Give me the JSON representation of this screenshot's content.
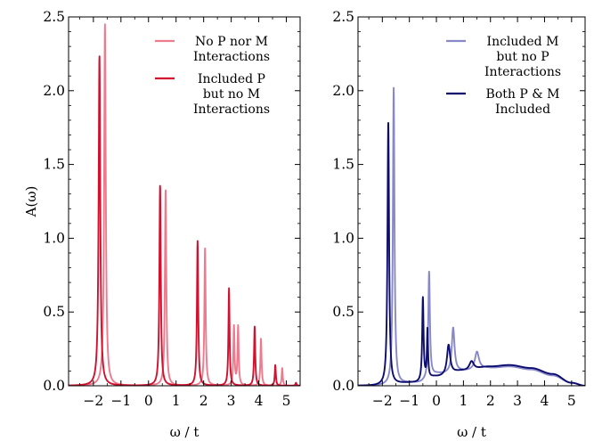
{
  "chart_data": [
    {
      "type": "line",
      "xlabel": "ω / t",
      "ylabel": "A(ω)",
      "xlim": [
        -2.9,
        5.5
      ],
      "ylim": [
        0,
        2.5
      ],
      "xticks": [
        -2,
        -1,
        0,
        1,
        2,
        3,
        4,
        5
      ],
      "xtick_labels": [
        "−2",
        "−1",
        "0",
        "1",
        "2",
        "3",
        "4",
        "5"
      ],
      "yticks": [
        0.0,
        0.5,
        1.0,
        1.5,
        2.0,
        2.5
      ],
      "ytick_labels": [
        "0.0",
        "0.5",
        "1.0",
        "1.5",
        "2.0",
        "2.5"
      ],
      "legend_position": "top-right",
      "series": [
        {
          "name": "No P nor M Interactions",
          "legend_lines": [
            "No P nor M",
            "Interactions"
          ],
          "color": "#ee7a8e",
          "peaks": [
            {
              "x": -1.58,
              "height": 2.45,
              "width": 0.07
            },
            {
              "x": 0.62,
              "height": 1.33,
              "width": 0.06
            },
            {
              "x": 2.05,
              "height": 0.93,
              "width": 0.055
            },
            {
              "x": 3.1,
              "height": 0.4,
              "width": 0.05
            },
            {
              "x": 3.25,
              "height": 0.4,
              "width": 0.05
            },
            {
              "x": 4.08,
              "height": 0.32,
              "width": 0.05
            },
            {
              "x": 4.85,
              "height": 0.12,
              "width": 0.045
            }
          ]
        },
        {
          "name": "Included P but no M Interactions",
          "legend_lines": [
            "Included P",
            "but no M",
            "Interactions"
          ],
          "color": "#d0122f",
          "peaks": [
            {
              "x": -1.78,
              "height": 2.24,
              "width": 0.07
            },
            {
              "x": 0.42,
              "height": 1.36,
              "width": 0.06
            },
            {
              "x": 1.78,
              "height": 0.98,
              "width": 0.055
            },
            {
              "x": 2.92,
              "height": 0.66,
              "width": 0.05
            },
            {
              "x": 3.85,
              "height": 0.4,
              "width": 0.05
            },
            {
              "x": 4.6,
              "height": 0.14,
              "width": 0.045
            },
            {
              "x": 5.35,
              "height": 0.02,
              "width": 0.05
            }
          ]
        }
      ]
    },
    {
      "type": "line",
      "xlabel": "ω / t",
      "ylabel": "",
      "xlim": [
        -2.9,
        5.5
      ],
      "ylim": [
        0,
        2.5
      ],
      "xticks": [
        -2,
        -1,
        0,
        1,
        2,
        3,
        4,
        5
      ],
      "xtick_labels": [
        "−2",
        "−1",
        "0",
        "1",
        "2",
        "3",
        "4",
        "5"
      ],
      "yticks": [
        0.0,
        0.5,
        1.0,
        1.5,
        2.0,
        2.5
      ],
      "ytick_labels": [
        "0.0",
        "0.5",
        "1.0",
        "1.5",
        "2.0",
        "2.5"
      ],
      "legend_position": "top-right",
      "series": [
        {
          "name": "Included M but no P Interactions",
          "legend_lines": [
            "Included M",
            "but no P",
            "Interactions"
          ],
          "color": "#8888c8",
          "peaks": [
            {
              "x": -1.58,
              "height": 2.01,
              "width": 0.07
            },
            {
              "x": -0.27,
              "height": 0.72,
              "width": 0.07
            },
            {
              "x": 0.62,
              "height": 0.3,
              "width": 0.12
            },
            {
              "x": 1.5,
              "height": 0.12,
              "width": 0.18
            }
          ],
          "background": [
            {
              "x": -2.3,
              "y": 0.0
            },
            {
              "x": -0.7,
              "y": 0.02
            },
            {
              "x": 0.1,
              "y": 0.08
            },
            {
              "x": 1.0,
              "y": 0.1
            },
            {
              "x": 2.0,
              "y": 0.12
            },
            {
              "x": 2.7,
              "y": 0.13
            },
            {
              "x": 3.5,
              "y": 0.11
            },
            {
              "x": 4.3,
              "y": 0.07
            },
            {
              "x": 5.0,
              "y": 0.02
            },
            {
              "x": 5.5,
              "y": 0.0
            }
          ]
        },
        {
          "name": "Both P & M Included",
          "legend_lines": [
            "Both P & M",
            "Included"
          ],
          "color": "#0d0d6e",
          "peaks": [
            {
              "x": -1.78,
              "height": 1.78,
              "width": 0.07
            },
            {
              "x": -0.5,
              "height": 0.56,
              "width": 0.06
            },
            {
              "x": -0.33,
              "height": 0.33,
              "width": 0.05
            },
            {
              "x": 0.45,
              "height": 0.2,
              "width": 0.14
            },
            {
              "x": 1.3,
              "height": 0.06,
              "width": 0.2
            }
          ],
          "background": [
            {
              "x": -2.4,
              "y": 0.0
            },
            {
              "x": -0.8,
              "y": 0.02
            },
            {
              "x": 0.0,
              "y": 0.06
            },
            {
              "x": 1.0,
              "y": 0.1
            },
            {
              "x": 2.0,
              "y": 0.13
            },
            {
              "x": 2.7,
              "y": 0.14
            },
            {
              "x": 3.5,
              "y": 0.12
            },
            {
              "x": 4.3,
              "y": 0.08
            },
            {
              "x": 5.0,
              "y": 0.02
            },
            {
              "x": 5.5,
              "y": 0.0
            }
          ]
        }
      ]
    }
  ]
}
